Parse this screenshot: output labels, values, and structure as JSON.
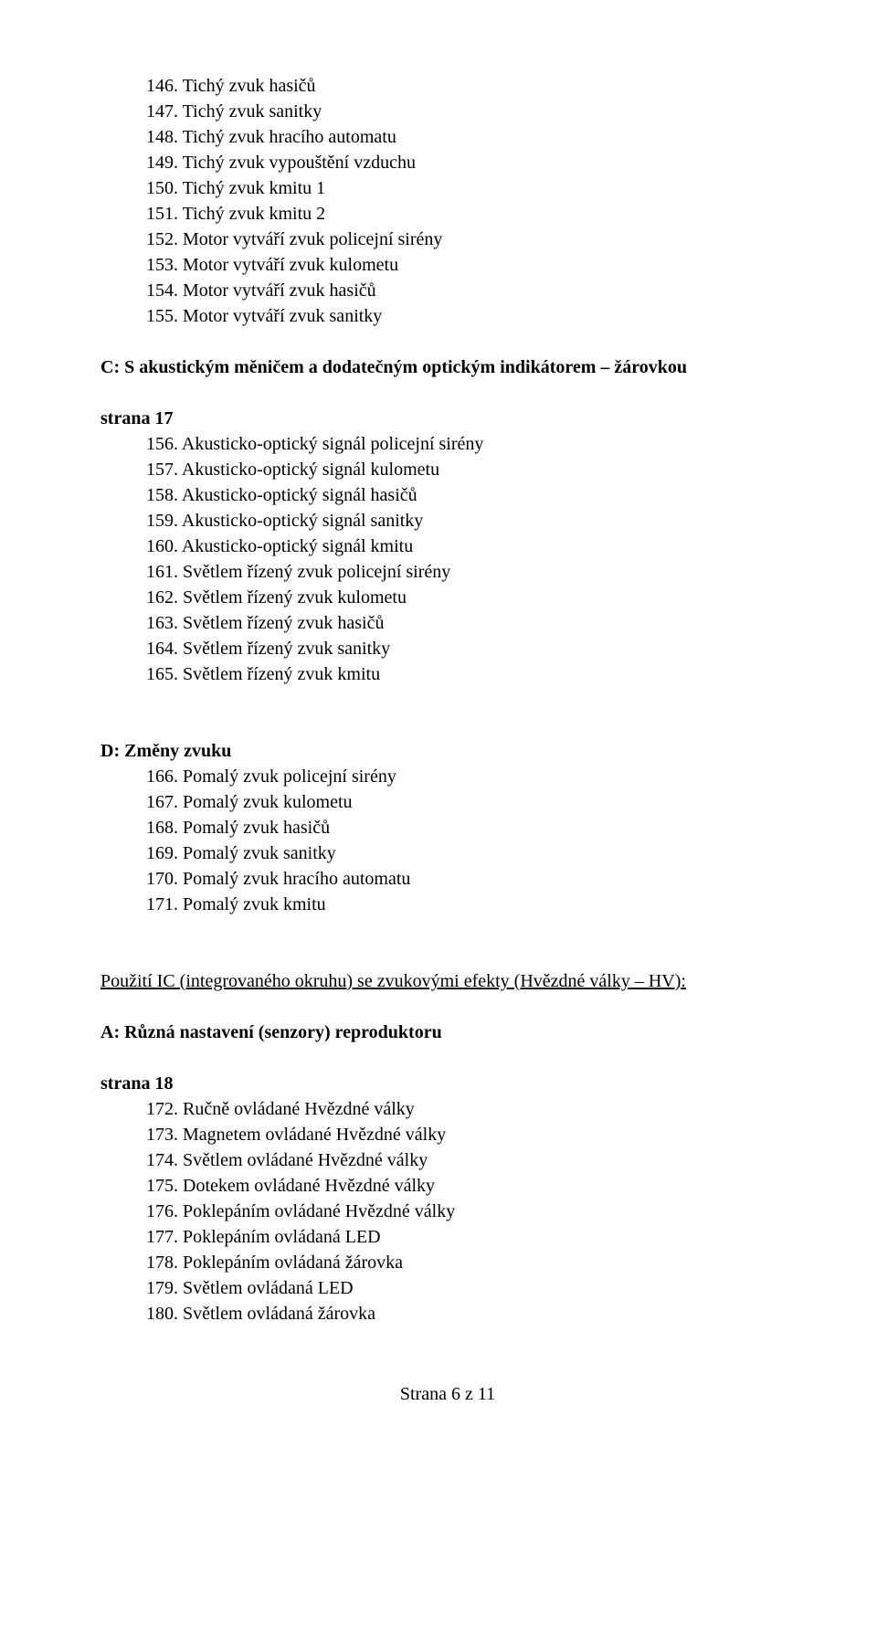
{
  "sectionA": {
    "items": [
      "146. Tichý zvuk hasičů",
      "147. Tichý zvuk sanitky",
      "148. Tichý zvuk hracího automatu",
      "149. Tichý zvuk vypouštění vzduchu",
      "150. Tichý zvuk kmitu 1",
      "151. Tichý zvuk kmitu 2",
      "152. Motor vytváří zvuk policejní sirény",
      "153. Motor vytváří zvuk kulometu",
      "154. Motor vytváří zvuk hasičů",
      "155. Motor vytváří zvuk sanitky"
    ]
  },
  "sectionC": {
    "title": "C: S akustickým měničem a dodatečným optickým indikátorem – žárovkou",
    "page": "strana 17",
    "items": [
      "156. Akusticko-optický signál policejní sirény",
      "157. Akusticko-optický signál kulometu",
      "158. Akusticko-optický signál hasičů",
      "159. Akusticko-optický signál sanitky",
      "160. Akusticko-optický signál kmitu",
      "161. Světlem řízený zvuk policejní sirény",
      "162. Světlem řízený zvuk kulometu",
      "163. Světlem řízený zvuk hasičů",
      "164. Světlem řízený zvuk sanitky",
      "165. Světlem řízený zvuk kmitu"
    ]
  },
  "sectionD": {
    "title": "D: Změny zvuku",
    "items": [
      "166. Pomalý zvuk policejní sirény",
      "167. Pomalý zvuk kulometu",
      "168. Pomalý zvuk hasičů",
      "169. Pomalý zvuk sanitky",
      "170. Pomalý zvuk hracího automatu",
      "171. Pomalý zvuk kmitu"
    ]
  },
  "ic_section": {
    "title": "Použití IC (integrovaného okruhu) se zvukovými efekty (Hvězdné války – HV):",
    "subheadingA": "A: Různá nastavení (senzory) reproduktoru",
    "page": "strana 18",
    "items": [
      "172. Ručně ovládané Hvězdné války",
      "173. Magnetem ovládané Hvězdné války",
      "174. Světlem ovládané Hvězdné války",
      "175. Dotekem ovládané Hvězdné války",
      "176. Poklepáním ovládané Hvězdné války",
      "177. Poklepáním ovládaná LED",
      "178. Poklepáním ovládaná žárovka",
      "179. Světlem ovládaná LED",
      "180. Světlem ovládaná žárovka"
    ]
  },
  "footer": "Strana 6 z 11"
}
